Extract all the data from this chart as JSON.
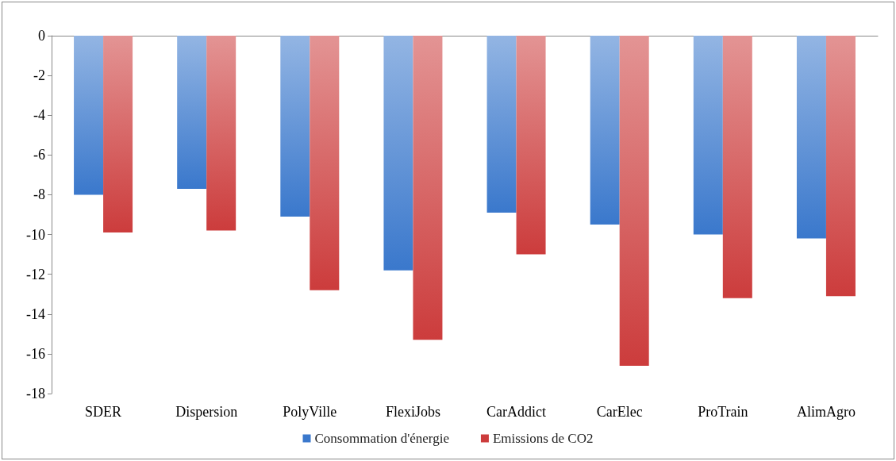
{
  "chart_data": {
    "type": "bar",
    "categories": [
      "SDER",
      "Dispersion",
      "PolyVille",
      "FlexiJobs",
      "CarAddict",
      "CarElec",
      "ProTrain",
      "AlimAgro"
    ],
    "series": [
      {
        "name": "Consommation d'énergie",
        "color": "#3a78cc",
        "values": [
          -8.0,
          -7.7,
          -9.1,
          -11.8,
          -8.9,
          -9.5,
          -10.0,
          -10.2
        ]
      },
      {
        "name": "Emissions de CO2",
        "color": "#cc3c3c",
        "values": [
          -9.9,
          -9.8,
          -12.8,
          -15.3,
          -11.0,
          -16.6,
          -13.2,
          -13.1
        ]
      }
    ],
    "ylim": [
      -18,
      0
    ],
    "yticks": [
      -18,
      -16,
      -14,
      -12,
      -10,
      -8,
      -6,
      -4,
      -2,
      0
    ],
    "grid": false,
    "legend": "bottom"
  }
}
